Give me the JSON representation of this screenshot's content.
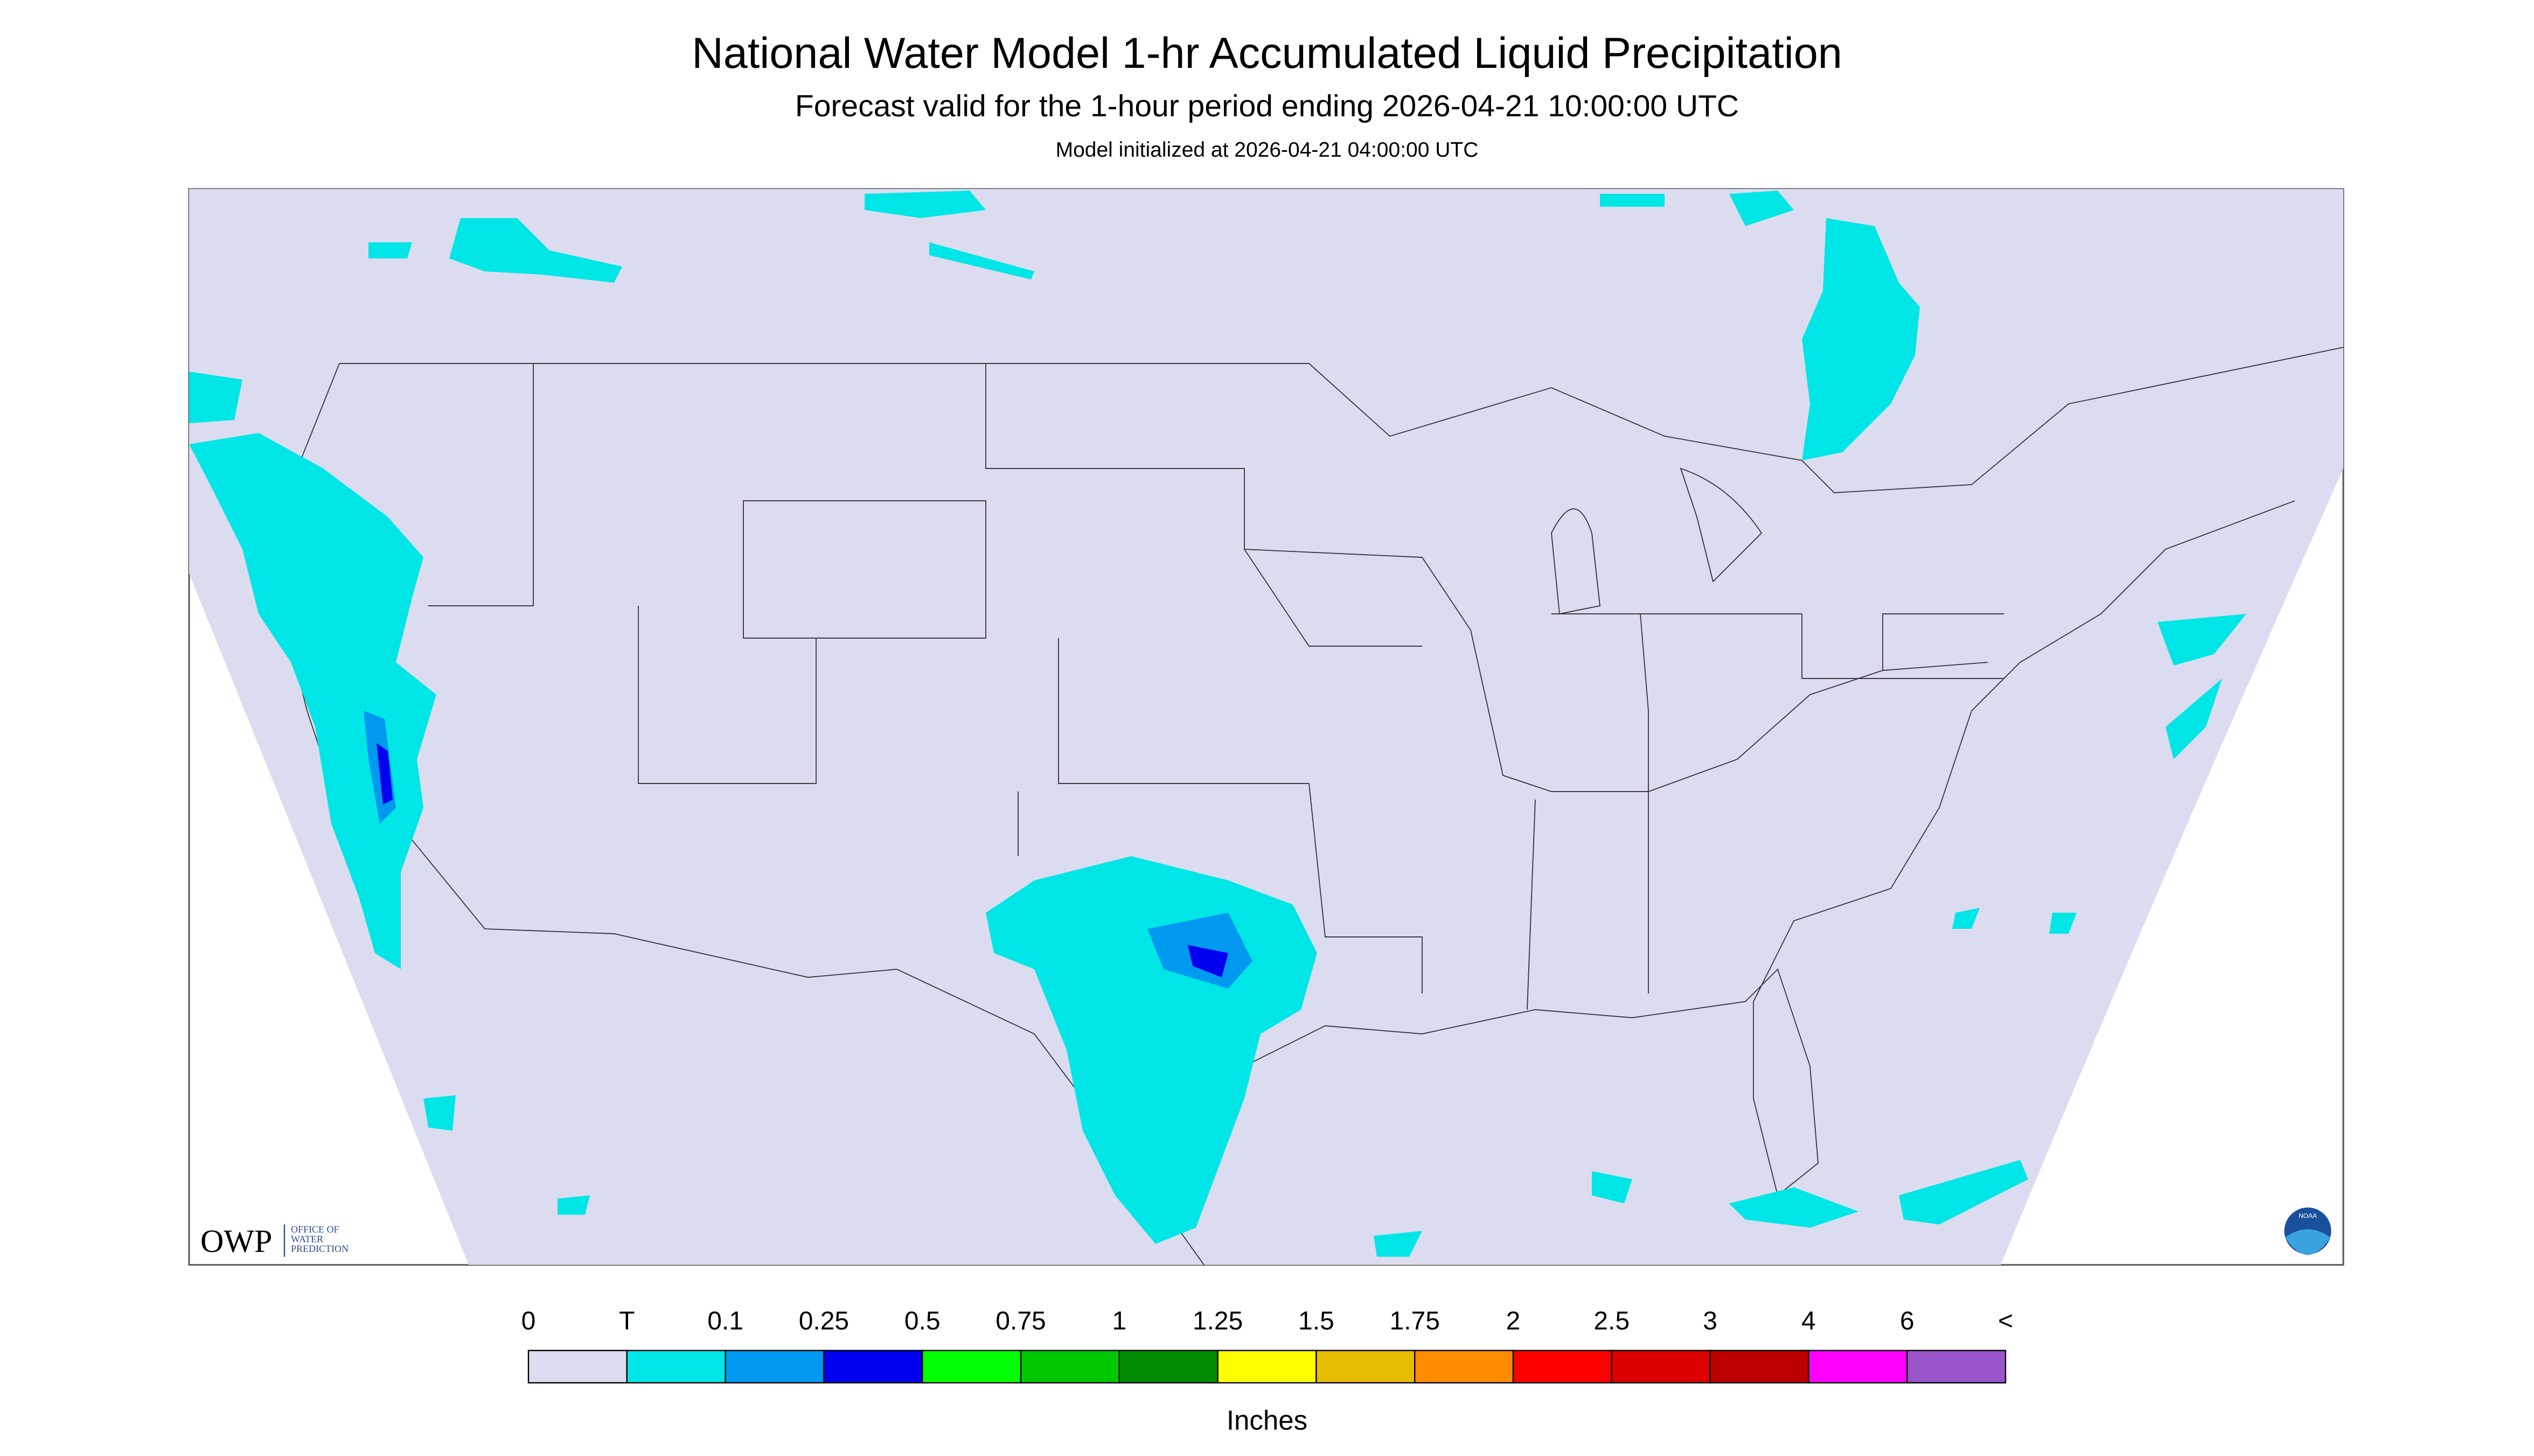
{
  "header": {
    "title": "National Water Model 1-hr Accumulated Liquid Precipitation",
    "subtitle": "Forecast valid for the 1-hour period ending 2026-04-21 10:00:00 UTC",
    "init": "Model initialized at 2026-04-21 04:00:00 UTC"
  },
  "logo": {
    "owp": "OWP",
    "lines": [
      "OFFICE OF",
      "WATER",
      "PREDICTION"
    ],
    "noaa": "NOAA"
  },
  "legend": {
    "labels": [
      "0",
      "T",
      "0.1",
      "0.25",
      "0.5",
      "0.75",
      "1",
      "1.25",
      "1.5",
      "1.75",
      "2",
      "2.5",
      "3",
      "4",
      "6",
      "<"
    ],
    "colors": [
      "#dcdcf0",
      "#00e6e6",
      "#0099f0",
      "#0000ee",
      "#00ff00",
      "#00c800",
      "#008c00",
      "#ffff00",
      "#e6bc00",
      "#ff8c00",
      "#ff0000",
      "#dc0000",
      "#bc0000",
      "#ff00ff",
      "#9955c9"
    ],
    "unit": "Inches"
  }
}
